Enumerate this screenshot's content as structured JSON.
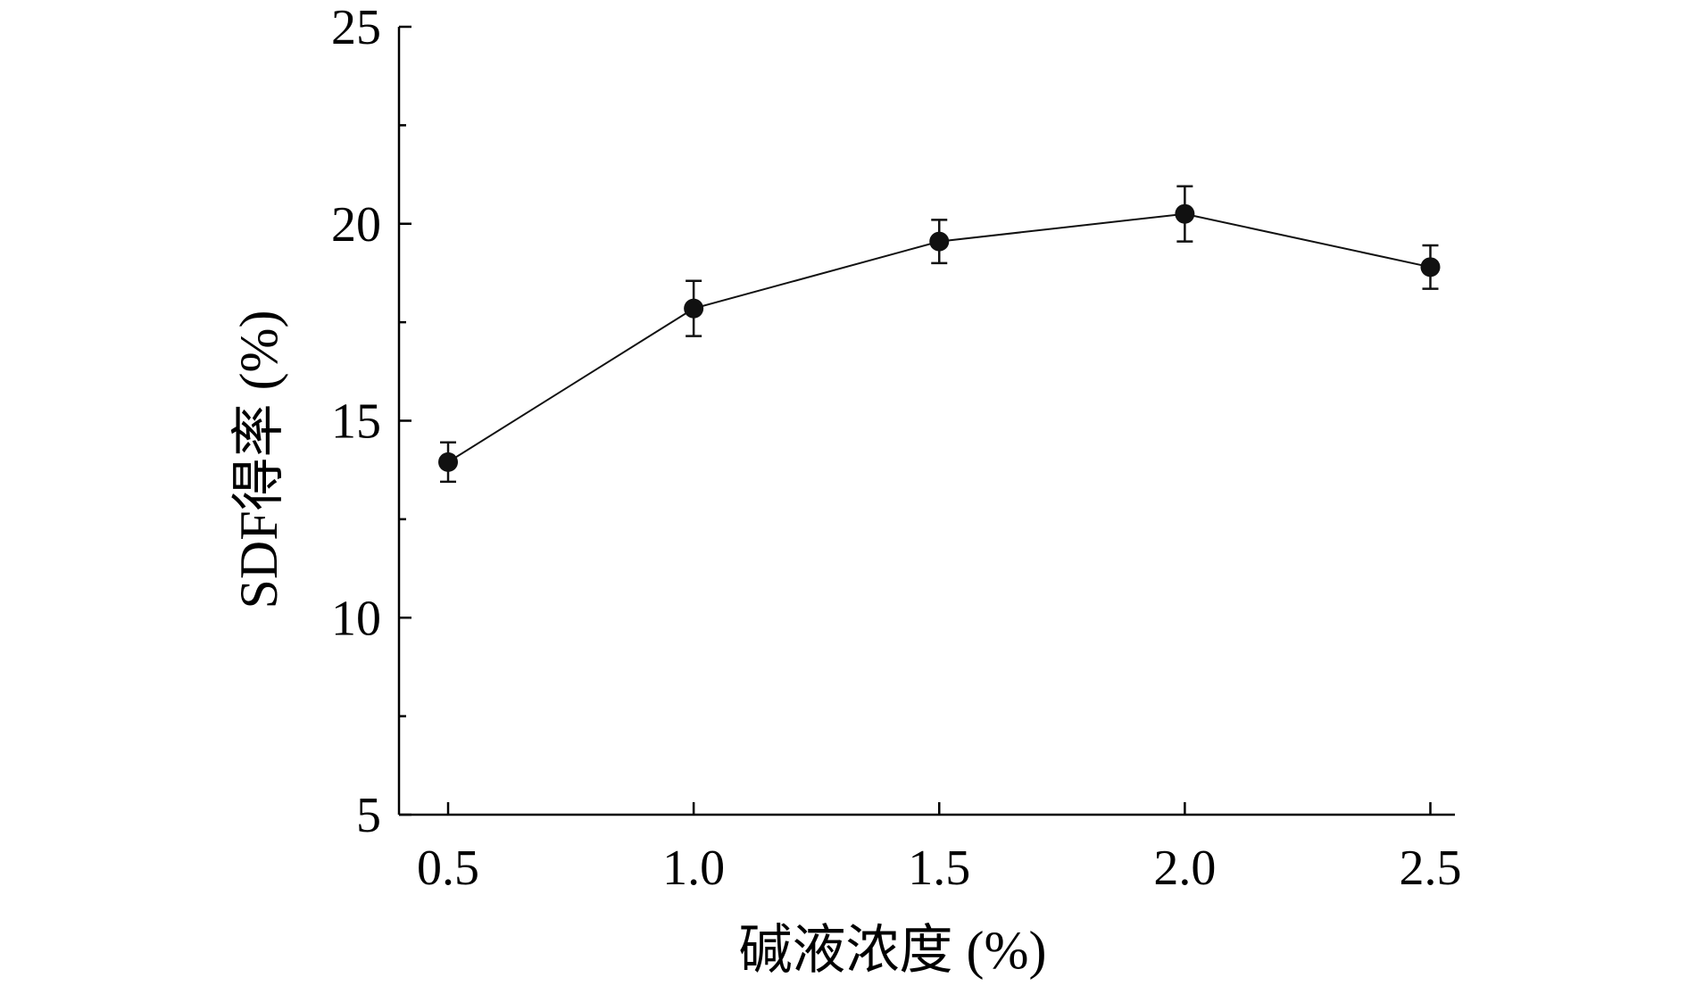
{
  "chart_data": {
    "type": "line",
    "title": "",
    "xlabel": "碱液浓度 (%)",
    "ylabel": "SDF得率 (%)",
    "x": [
      0.5,
      1.0,
      1.5,
      2.0,
      2.5
    ],
    "x_tick_labels": [
      "0.5",
      "1.0",
      "1.5",
      "2.0",
      "2.5"
    ],
    "xlim": [
      0.4,
      2.55
    ],
    "ylim": [
      5,
      25
    ],
    "y_ticks": [
      5,
      10,
      15,
      20,
      25
    ],
    "y_tick_labels": [
      "5",
      "10",
      "15",
      "20",
      "25"
    ],
    "y_minor_ticks": [
      7.5,
      12.5,
      17.5,
      22.5
    ],
    "grid": false,
    "series": [
      {
        "values": [
          13.95,
          17.85,
          19.55,
          20.25,
          18.9
        ],
        "error": [
          0.5,
          0.7,
          0.55,
          0.7,
          0.55
        ],
        "color": "#111111",
        "marker": "filled-circle"
      }
    ]
  }
}
